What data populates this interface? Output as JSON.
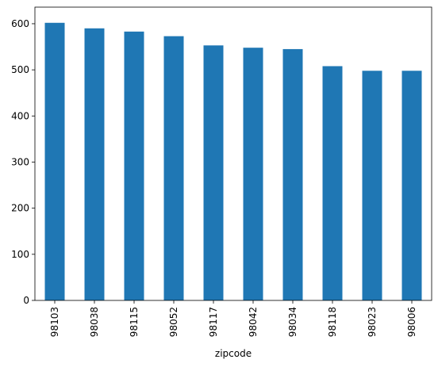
{
  "chart_data": {
    "type": "bar",
    "xlabel": "zipcode",
    "categories": [
      "98103",
      "98038",
      "98115",
      "98052",
      "98117",
      "98042",
      "98034",
      "98118",
      "98023",
      "98006"
    ],
    "values": [
      602,
      590,
      583,
      573,
      553,
      548,
      545,
      508,
      498,
      498
    ],
    "color": "#1f77b4",
    "ylim": [
      0,
      636
    ],
    "yticks": [
      0,
      100,
      200,
      300,
      400,
      500,
      600
    ],
    "grid": false
  }
}
